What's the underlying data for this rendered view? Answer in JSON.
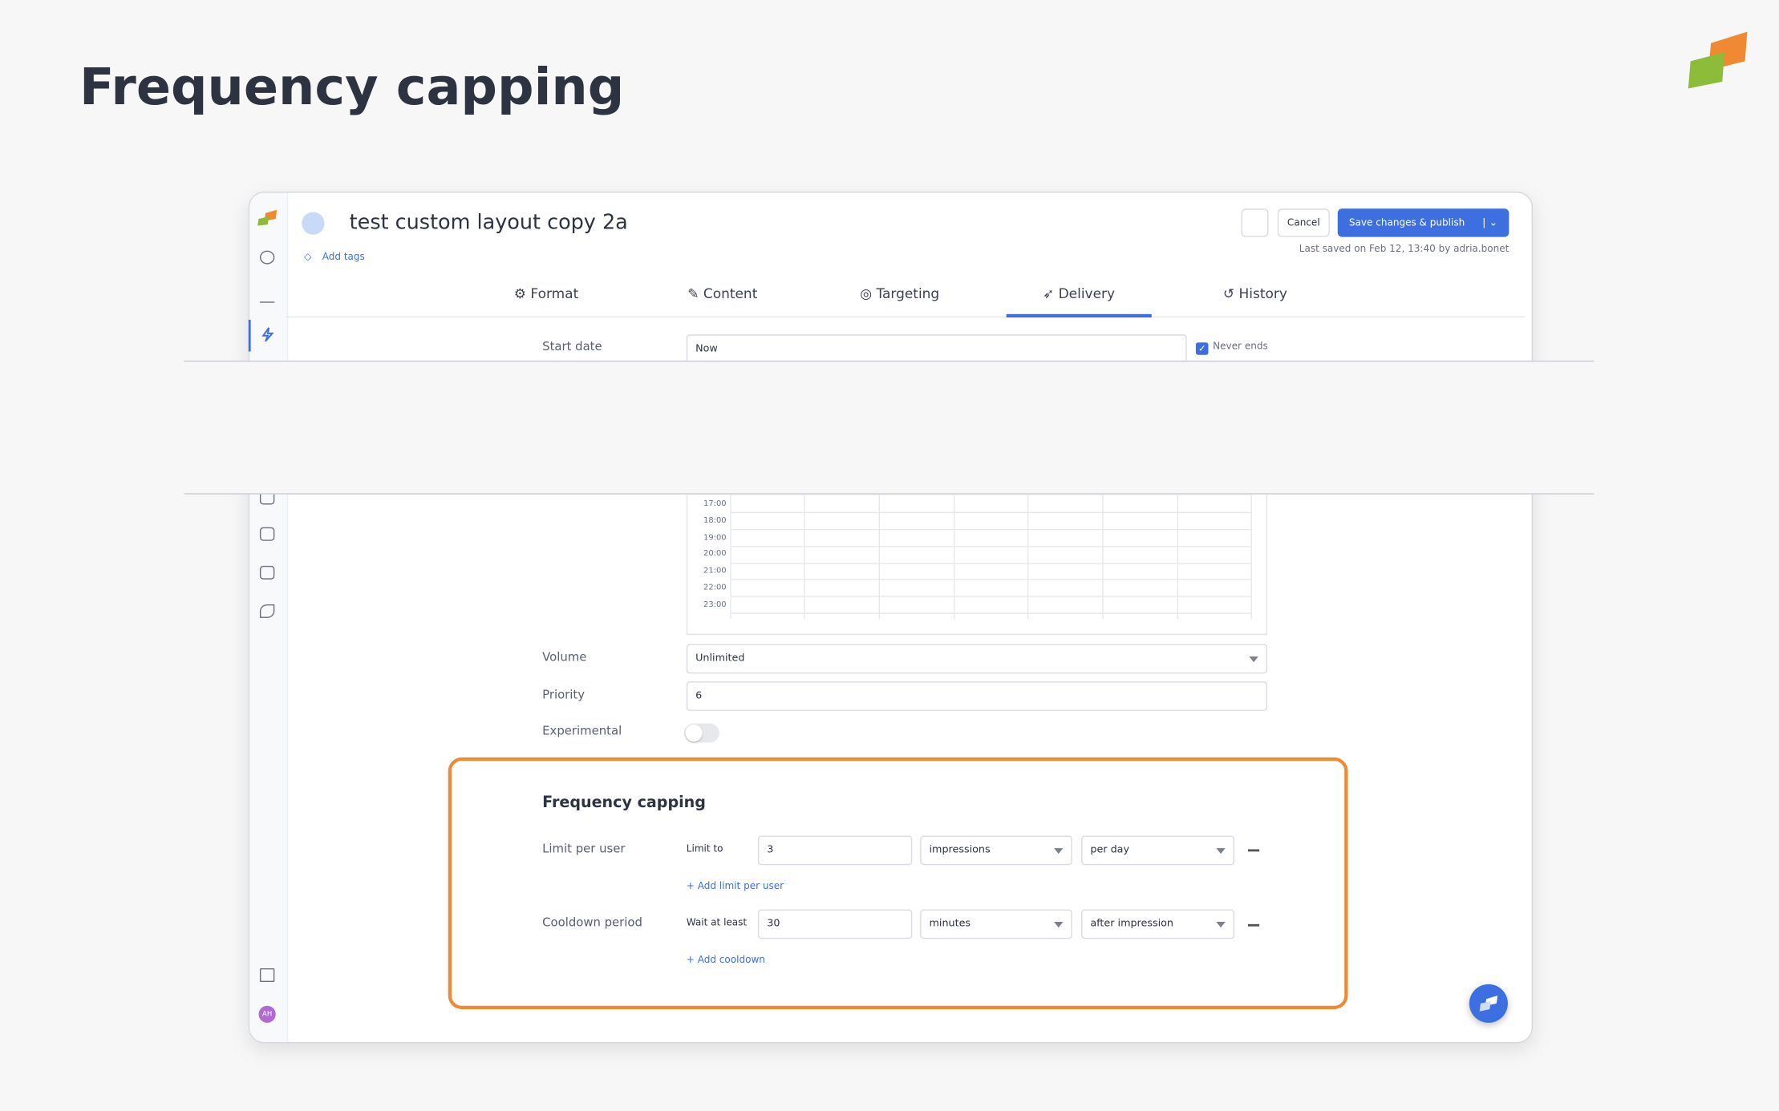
{
  "page_title": "Frequency capping",
  "campaign": {
    "name": "test custom layout copy 2a",
    "add_tags": "Add tags",
    "cancel": "Cancel",
    "save": "Save changes & publish",
    "last_saved": "Last saved on Feb 12, 13:40 by adria.bonet"
  },
  "tabs": [
    "Format",
    "Content",
    "Targeting",
    "Delivery",
    "History"
  ],
  "start_date": {
    "label": "Start date",
    "value": "Now",
    "never_ends": "Never ends"
  },
  "schedule_times": [
    "17:00",
    "18:00",
    "19:00",
    "20:00",
    "21:00",
    "22:00",
    "23:00"
  ],
  "volume": {
    "label": "Volume",
    "value": "Unlimited"
  },
  "priority": {
    "label": "Priority",
    "value": "6"
  },
  "experimental": {
    "label": "Experimental"
  },
  "frequency_capping": {
    "title": "Frequency capping",
    "limit_per_user": {
      "label": "Limit per user",
      "prefix": "Limit to",
      "amount": "3",
      "unit": "impressions",
      "period": "per day",
      "add": "+ Add limit per user"
    },
    "cooldown": {
      "label": "Cooldown period",
      "prefix": "Wait at least",
      "amount": "30",
      "unit": "minutes",
      "period": "after impression",
      "add": "+ Add cooldown"
    }
  },
  "avatar": "AH"
}
